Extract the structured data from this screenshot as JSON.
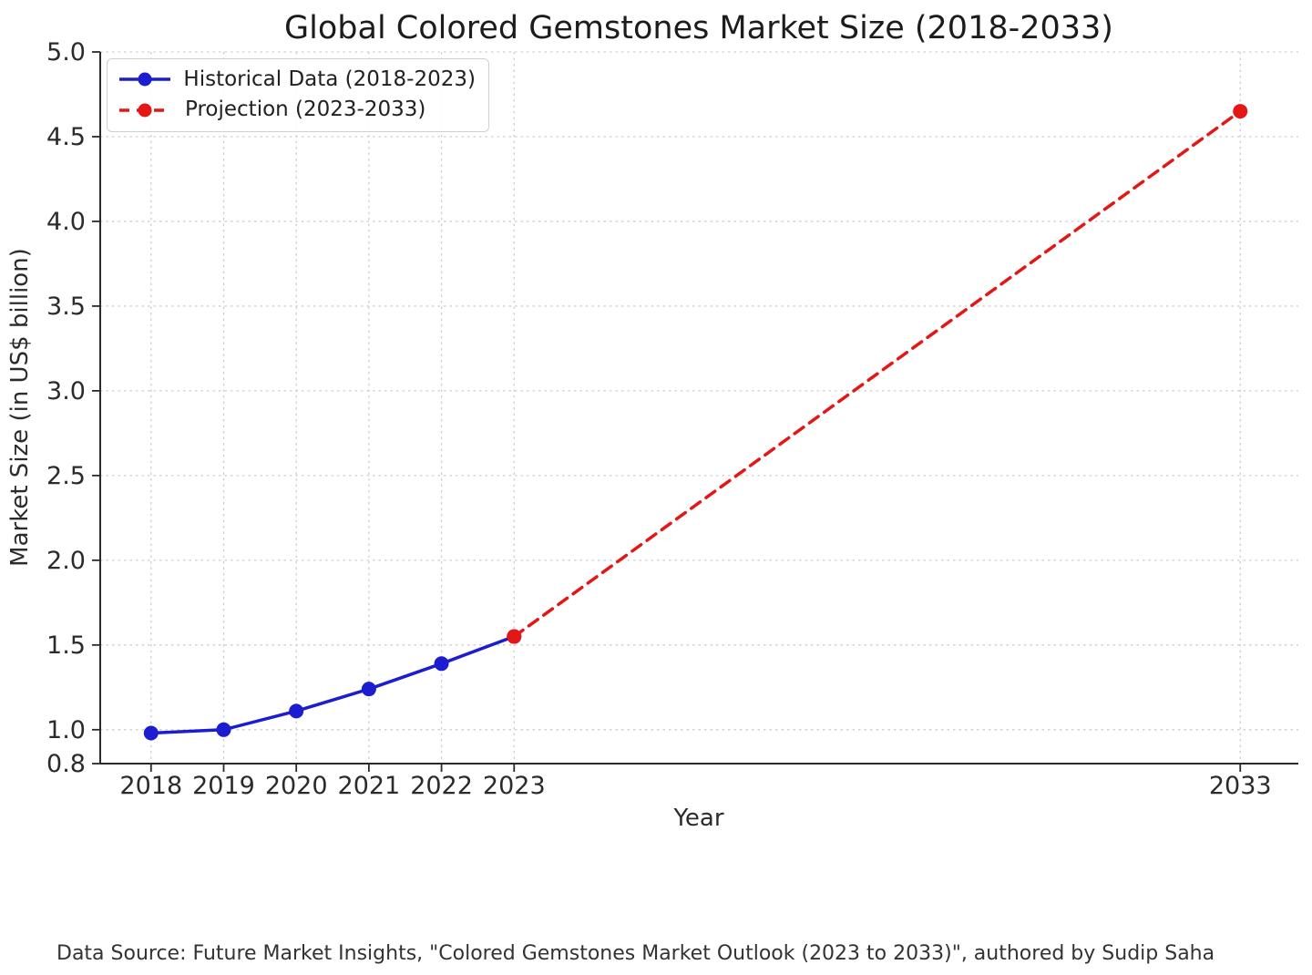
{
  "page": {
    "footer": "Data Source: Future Market Insights, \"Colored Gemstones Market Outlook (2023 to 2033)\", authored by Sudip Saha"
  },
  "chart_data": {
    "type": "line",
    "title": "Global Colored Gemstones Market Size (2018-2033)",
    "xlabel": "Year",
    "ylabel": "Market Size (in US$ billion)",
    "xlim": [
      2017.3,
      2033.8
    ],
    "ylim": [
      0.8,
      5.0
    ],
    "grid": true,
    "legend_position": "upper left",
    "x_ticks": [
      2018,
      2019,
      2020,
      2021,
      2022,
      2023,
      2033
    ],
    "x_tick_labels": [
      "2018",
      "2019",
      "2020",
      "2021",
      "2022",
      "2023",
      "2033"
    ],
    "y_ticks": [
      0.8,
      1.0,
      1.5,
      2.0,
      2.5,
      3.0,
      3.5,
      4.0,
      4.5,
      5.0
    ],
    "y_tick_labels": [
      "0.8",
      "1.0",
      "1.5",
      "2.0",
      "2.5",
      "3.0",
      "3.5",
      "4.0",
      "4.5",
      "5.0"
    ],
    "series": [
      {
        "name": "Historical Data (2018-2023)",
        "color": "#1c1cd1",
        "line_style": "solid",
        "marker": "circle",
        "x": [
          2018,
          2019,
          2020,
          2021,
          2022,
          2023
        ],
        "values": [
          0.98,
          1.0,
          1.11,
          1.24,
          1.39,
          1.55
        ]
      },
      {
        "name": "Projection (2023-2033)",
        "color": "#e41717",
        "line_style": "dashed",
        "marker": "circle",
        "x": [
          2023,
          2033
        ],
        "values": [
          1.55,
          4.65
        ]
      }
    ]
  },
  "legend": {
    "items": [
      {
        "label": "Historical Data (2018-2023)"
      },
      {
        "label": "Projection (2023-2033)"
      }
    ]
  },
  "colors": {
    "historical": "#1c1cd1",
    "projection": "#e41717",
    "grid": "#c9c9c9",
    "spine": "#2a2a2a",
    "text": "#2b2b2b"
  }
}
